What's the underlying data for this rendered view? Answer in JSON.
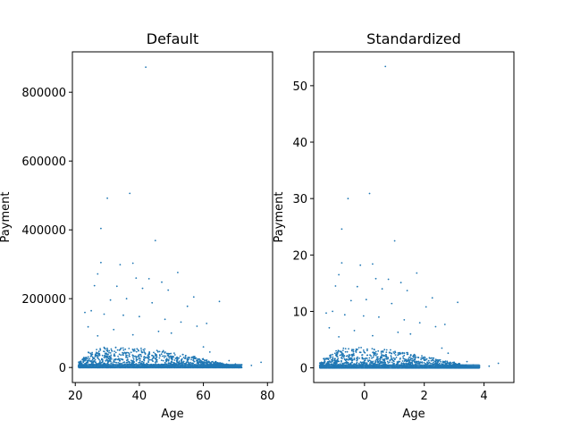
{
  "chart_data": [
    {
      "type": "scatter",
      "title": "Default",
      "xlabel": "Age",
      "ylabel": "Payment",
      "xlim": [
        19.1,
        81.6
      ],
      "ylim": [
        -43700,
        917400
      ],
      "xticks": [
        20,
        40,
        60,
        80
      ],
      "xtick_labels": [
        "20",
        "40",
        "60",
        "80"
      ],
      "yticks": [
        0,
        200000,
        400000,
        600000,
        800000
      ],
      "ytick_labels": [
        "0",
        "200000",
        "400000",
        "600000",
        "800000"
      ],
      "color": "#1f77b4",
      "grid": false,
      "series": [
        {
          "x": [
            42,
            37,
            30,
            28,
            45,
            28,
            38,
            34,
            27,
            39,
            43,
            47,
            52,
            65,
            26,
            33,
            41,
            49,
            57,
            36,
            31,
            44,
            55,
            25,
            23,
            29,
            35,
            40,
            48,
            53,
            61,
            58,
            24,
            32,
            46,
            50,
            38,
            27,
            60,
            62,
            68,
            70,
            72,
            75,
            78
          ],
          "y": [
            873000,
            506000,
            492000,
            404000,
            369000,
            305000,
            303000,
            299000,
            272000,
            260000,
            258000,
            248000,
            276000,
            192000,
            238000,
            236000,
            230000,
            225000,
            205000,
            200000,
            196000,
            188000,
            178000,
            165000,
            160000,
            155000,
            152000,
            148000,
            140000,
            132000,
            128000,
            120000,
            118000,
            110000,
            105000,
            100000,
            95000,
            92000,
            60000,
            45000,
            20000,
            10000,
            8000,
            6000,
            15000
          ]
        }
      ],
      "dense_band": {
        "x": [
          21,
          22,
          24,
          26,
          28,
          30,
          32,
          35,
          38,
          40,
          42,
          45,
          48,
          50,
          52,
          55,
          58,
          60,
          62,
          64,
          66,
          68,
          70,
          72
        ],
        "y_top": [
          18000,
          30000,
          45000,
          55000,
          60000,
          62000,
          62000,
          60000,
          58000,
          56000,
          54000,
          50000,
          46000,
          42000,
          38000,
          32000,
          26000,
          22000,
          18000,
          14000,
          10000,
          7000,
          5000,
          3000
        ]
      }
    },
    {
      "type": "scatter",
      "title": "Standardized",
      "xlabel": "Age",
      "ylabel": "Payment",
      "xlim": [
        -1.7,
        5.0
      ],
      "ylim": [
        -2.6,
        56.0
      ],
      "xticks": [
        0,
        2,
        4
      ],
      "xtick_labels": [
        "0",
        "2",
        "4"
      ],
      "yticks": [
        0,
        10,
        20,
        30,
        40,
        50
      ],
      "ytick_labels": [
        "0",
        "10",
        "20",
        "30",
        "40",
        "50"
      ],
      "color": "#1f77b4",
      "grid": false,
      "series": [
        {
          "x": [
            0.7,
            0.17,
            -0.55,
            -0.76,
            1.01,
            -0.76,
            0.27,
            -0.14,
            -0.86,
            0.38,
            0.8,
            1.22,
            1.75,
            3.12,
            -0.97,
            -0.24,
            0.59,
            1.43,
            2.27,
            0.06,
            -0.45,
            0.91,
            2.06,
            -1.07,
            -1.28,
            -0.66,
            -0.03,
            0.48,
            1.33,
            1.85,
            2.69,
            2.38,
            -1.18,
            -0.34,
            1.12,
            1.54,
            0.27,
            -0.86,
            2.59,
            2.8,
            3.43,
            3.64,
            3.85,
            4.17,
            4.48
          ],
          "y": [
            53.4,
            30.9,
            30.0,
            24.6,
            22.5,
            18.6,
            18.4,
            18.2,
            16.5,
            15.8,
            15.7,
            15.1,
            16.8,
            11.6,
            14.5,
            14.4,
            14.0,
            13.7,
            12.4,
            12.1,
            11.9,
            11.4,
            10.8,
            10.0,
            9.7,
            9.4,
            9.2,
            9.0,
            8.5,
            8.0,
            7.7,
            7.3,
            7.1,
            6.6,
            6.3,
            6.0,
            5.7,
            5.5,
            3.5,
            2.6,
            1.1,
            0.5,
            0.4,
            0.3,
            0.8
          ]
        }
      ],
      "dense_band": {
        "x": [
          -1.5,
          -1.39,
          -1.18,
          -0.97,
          -0.76,
          -0.55,
          -0.34,
          -0.03,
          0.27,
          0.48,
          0.7,
          1.01,
          1.33,
          1.54,
          1.75,
          2.06,
          2.38,
          2.59,
          2.8,
          3.01,
          3.22,
          3.43,
          3.64,
          3.85
        ],
        "y_top": [
          1.0,
          1.7,
          2.6,
          3.2,
          3.5,
          3.6,
          3.6,
          3.5,
          3.4,
          3.3,
          3.2,
          2.9,
          2.7,
          2.4,
          2.2,
          1.8,
          1.5,
          1.2,
          1.0,
          0.8,
          0.5,
          0.3,
          0.2,
          0.1
        ]
      }
    }
  ]
}
